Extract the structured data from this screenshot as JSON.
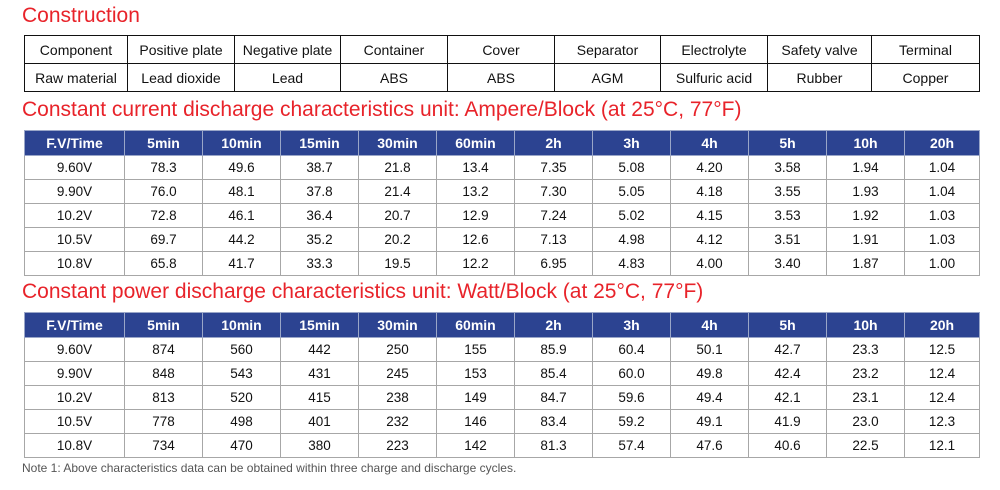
{
  "construction": {
    "title": "Construction",
    "rows": [
      [
        "Component",
        "Positive plate",
        "Negative plate",
        "Container",
        "Cover",
        "Separator",
        "Electrolyte",
        "Safety valve",
        "Terminal"
      ],
      [
        "Raw material",
        "Lead dioxide",
        "Lead",
        "ABS",
        "ABS",
        "AGM",
        "Sulfuric acid",
        "Rubber",
        "Copper"
      ]
    ]
  },
  "current_table": {
    "title": "Constant current discharge characteristics unit: Ampere/Block (at 25°C, 77°F)",
    "headers": [
      "F.V/Time",
      "5min",
      "10min",
      "15min",
      "30min",
      "60min",
      "2h",
      "3h",
      "4h",
      "5h",
      "10h",
      "20h"
    ],
    "rows": [
      [
        "9.60V",
        "78.3",
        "49.6",
        "38.7",
        "21.8",
        "13.4",
        "7.35",
        "5.08",
        "4.20",
        "3.58",
        "1.94",
        "1.04"
      ],
      [
        "9.90V",
        "76.0",
        "48.1",
        "37.8",
        "21.4",
        "13.2",
        "7.30",
        "5.05",
        "4.18",
        "3.55",
        "1.93",
        "1.04"
      ],
      [
        "10.2V",
        "72.8",
        "46.1",
        "36.4",
        "20.7",
        "12.9",
        "7.24",
        "5.02",
        "4.15",
        "3.53",
        "1.92",
        "1.03"
      ],
      [
        "10.5V",
        "69.7",
        "44.2",
        "35.2",
        "20.2",
        "12.6",
        "7.13",
        "4.98",
        "4.12",
        "3.51",
        "1.91",
        "1.03"
      ],
      [
        "10.8V",
        "65.8",
        "41.7",
        "33.3",
        "19.5",
        "12.2",
        "6.95",
        "4.83",
        "4.00",
        "3.40",
        "1.87",
        "1.00"
      ]
    ]
  },
  "power_table": {
    "title": "Constant power discharge characteristics unit: Watt/Block (at 25°C, 77°F)",
    "headers": [
      "F.V/Time",
      "5min",
      "10min",
      "15min",
      "30min",
      "60min",
      "2h",
      "3h",
      "4h",
      "5h",
      "10h",
      "20h"
    ],
    "rows": [
      [
        "9.60V",
        "874",
        "560",
        "442",
        "250",
        "155",
        "85.9",
        "60.4",
        "50.1",
        "42.7",
        "23.3",
        "12.5"
      ],
      [
        "9.90V",
        "848",
        "543",
        "431",
        "245",
        "153",
        "85.4",
        "60.0",
        "49.8",
        "42.4",
        "23.2",
        "12.4"
      ],
      [
        "10.2V",
        "813",
        "520",
        "415",
        "238",
        "149",
        "84.7",
        "59.6",
        "49.4",
        "42.1",
        "23.1",
        "12.4"
      ],
      [
        "10.5V",
        "778",
        "498",
        "401",
        "232",
        "146",
        "83.4",
        "59.2",
        "49.1",
        "41.9",
        "23.0",
        "12.3"
      ],
      [
        "10.8V",
        "734",
        "470",
        "380",
        "223",
        "142",
        "81.3",
        "57.4",
        "47.6",
        "40.6",
        "22.5",
        "12.1"
      ]
    ]
  },
  "note": "Note 1: Above characteristics data can be obtained within three charge and discharge cycles.",
  "colors": {
    "title_red": "#e8232a",
    "header_blue": "#2c4391"
  }
}
